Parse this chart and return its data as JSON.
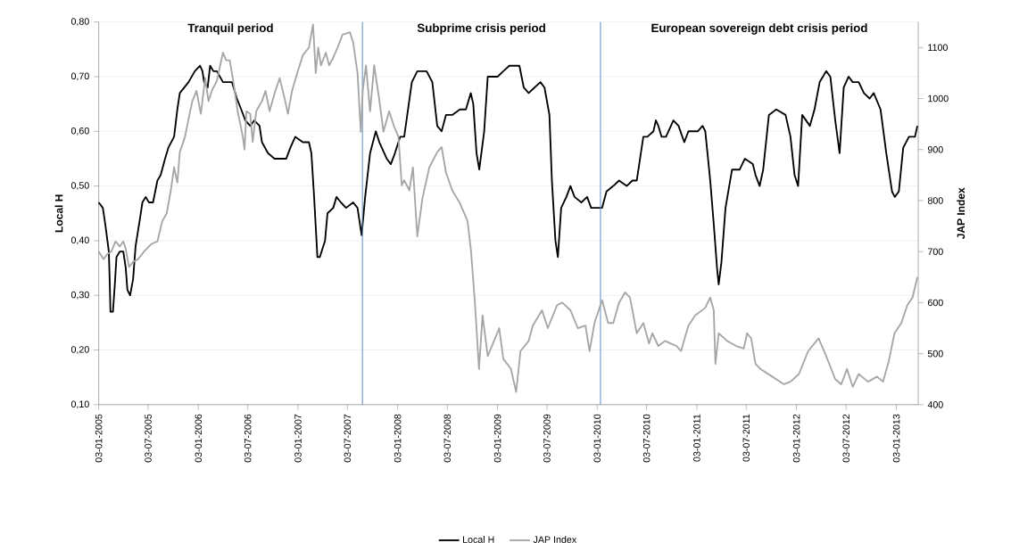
{
  "chart_data": {
    "type": "line",
    "annotations": [
      "Tranquil period",
      "Subprime crisis period",
      "European sovereign debt crisis period"
    ],
    "ylabel": "Local H",
    "y2label": "JAP Index",
    "xlim": [
      "2005-01-03",
      "2013-03-24"
    ],
    "xticks": [
      {
        "value": "2005-01-03",
        "label": "03-01-2005"
      },
      {
        "value": "2005-07-03",
        "label": "03-07-2005"
      },
      {
        "value": "2006-01-03",
        "label": "03-01-2006"
      },
      {
        "value": "2006-07-03",
        "label": "03-07-2006"
      },
      {
        "value": "2007-01-03",
        "label": "03-01-2007"
      },
      {
        "value": "2007-07-03",
        "label": "03-07-2007"
      },
      {
        "value": "2008-01-03",
        "label": "03-01-2008"
      },
      {
        "value": "2008-07-03",
        "label": "03-07-2008"
      },
      {
        "value": "2009-01-03",
        "label": "03-01-2009"
      },
      {
        "value": "2009-07-03",
        "label": "03-07-2009"
      },
      {
        "value": "2010-01-03",
        "label": "03-01-2010"
      },
      {
        "value": "2010-07-03",
        "label": "03-07-2010"
      },
      {
        "value": "2011-01-03",
        "label": "03-01-2011"
      },
      {
        "value": "2011-07-03",
        "label": "03-07-2011"
      },
      {
        "value": "2012-01-03",
        "label": "03-01-2012"
      },
      {
        "value": "2012-07-03",
        "label": "03-07-2012"
      },
      {
        "value": "2013-01-03",
        "label": "03-01-2013"
      }
    ],
    "ylim": [
      0.1,
      0.8
    ],
    "yticks": [
      {
        "value": 0.1,
        "label": "0,10"
      },
      {
        "value": 0.2,
        "label": "0,20"
      },
      {
        "value": 0.3,
        "label": "0,30"
      },
      {
        "value": 0.4,
        "label": "0,40"
      },
      {
        "value": 0.5,
        "label": "0,50"
      },
      {
        "value": 0.6,
        "label": "0,60"
      },
      {
        "value": 0.7,
        "label": "0,70"
      },
      {
        "value": 0.8,
        "label": "0,80"
      }
    ],
    "y2lim": [
      400,
      1150
    ],
    "y2ticks": [
      400,
      500,
      600,
      700,
      800,
      900,
      1000,
      1100
    ],
    "grid": "y",
    "legend": "bottom",
    "ref_lines": [
      {
        "axis": "x",
        "value": "2007-08-27",
        "color": "#4f81bd"
      },
      {
        "axis": "x",
        "value": "2010-01-15",
        "color": "#4f81bd"
      }
    ],
    "series": [
      {
        "name": "Local H",
        "color": "#000000",
        "x": [
          "2005-01-03",
          "2005-01-18",
          "2005-01-27",
          "2005-02-09",
          "2005-02-12",
          "2005-02-15",
          "2005-02-24",
          "2005-03-03",
          "2005-03-09",
          "2005-03-21",
          "2005-04-03",
          "2005-04-12",
          "2005-04-18",
          "2005-04-28",
          "2005-05-09",
          "2005-05-18",
          "2005-06-03",
          "2005-06-12",
          "2005-06-24",
          "2005-07-06",
          "2005-07-21",
          "2005-08-06",
          "2005-08-18",
          "2005-09-03",
          "2005-09-15",
          "2005-10-06",
          "2005-10-18",
          "2005-10-27",
          "2005-11-28",
          "2005-12-21",
          "2006-01-09",
          "2006-01-18",
          "2006-01-24",
          "2006-02-06",
          "2006-02-15",
          "2006-02-27",
          "2006-03-12",
          "2006-04-03",
          "2006-05-06",
          "2006-05-24",
          "2006-06-09",
          "2006-06-24",
          "2006-07-12",
          "2006-07-27",
          "2006-08-15",
          "2006-08-24",
          "2006-09-15",
          "2006-10-09",
          "2006-10-28",
          "2006-11-21",
          "2006-12-06",
          "2006-12-24",
          "2007-01-21",
          "2007-02-12",
          "2007-02-21",
          "2007-03-03",
          "2007-03-15",
          "2007-03-24",
          "2007-04-12",
          "2007-04-21",
          "2007-05-12",
          "2007-05-24",
          "2007-06-09",
          "2007-06-28",
          "2007-07-24",
          "2007-08-09",
          "2007-08-24",
          "2007-09-06",
          "2007-09-24",
          "2007-10-15",
          "2007-10-28",
          "2007-11-24",
          "2007-12-09",
          "2007-12-24",
          "2008-01-12",
          "2008-01-27",
          "2008-02-24",
          "2008-03-15",
          "2008-04-18",
          "2008-05-09",
          "2008-05-27",
          "2008-06-12",
          "2008-06-28",
          "2008-07-21",
          "2008-08-18",
          "2008-09-09",
          "2008-09-27",
          "2008-10-06",
          "2008-10-18",
          "2008-10-28",
          "2008-11-15",
          "2008-11-28",
          "2009-01-03",
          "2009-01-24",
          "2009-02-15",
          "2009-03-06",
          "2009-03-24",
          "2009-04-09",
          "2009-04-27",
          "2009-05-18",
          "2009-06-09",
          "2009-06-24",
          "2009-07-12",
          "2009-07-21",
          "2009-08-03",
          "2009-08-12",
          "2009-08-24",
          "2009-09-12",
          "2009-09-27",
          "2009-10-12",
          "2009-11-06",
          "2009-11-27",
          "2009-12-12",
          "2009-12-27",
          "2010-01-21",
          "2010-02-06",
          "2010-03-03",
          "2010-03-24",
          "2010-04-21",
          "2010-05-12",
          "2010-05-28",
          "2010-06-21",
          "2010-07-06",
          "2010-07-28",
          "2010-08-06",
          "2010-08-15",
          "2010-08-27",
          "2010-09-12",
          "2010-10-09",
          "2010-10-28",
          "2010-11-18",
          "2010-12-03",
          "2010-12-27",
          "2011-01-06",
          "2011-01-24",
          "2011-02-03",
          "2011-02-21",
          "2011-03-06",
          "2011-03-18",
          "2011-03-24",
          "2011-04-03",
          "2011-04-18",
          "2011-05-12",
          "2011-06-09",
          "2011-06-28",
          "2011-07-27",
          "2011-08-06",
          "2011-08-21",
          "2011-09-03",
          "2011-09-24",
          "2011-10-21",
          "2011-11-24",
          "2011-12-12",
          "2011-12-27",
          "2012-01-09",
          "2012-01-24",
          "2012-02-21",
          "2012-03-09",
          "2012-03-28",
          "2012-04-21",
          "2012-05-06",
          "2012-05-24",
          "2012-06-09",
          "2012-06-24",
          "2012-07-12",
          "2012-07-27",
          "2012-08-18",
          "2012-09-06",
          "2012-09-27",
          "2012-10-12",
          "2012-11-06",
          "2012-11-27",
          "2012-12-18",
          "2012-12-28",
          "2013-01-12",
          "2013-01-28",
          "2013-02-18",
          "2013-03-12",
          "2013-03-21"
        ],
        "values": [
          0.47,
          0.46,
          0.43,
          0.38,
          0.33,
          0.27,
          0.27,
          0.32,
          0.37,
          0.38,
          0.38,
          0.35,
          0.31,
          0.3,
          0.33,
          0.39,
          0.44,
          0.47,
          0.48,
          0.47,
          0.47,
          0.51,
          0.52,
          0.55,
          0.57,
          0.59,
          0.64,
          0.67,
          0.69,
          0.71,
          0.72,
          0.71,
          0.69,
          0.68,
          0.72,
          0.71,
          0.71,
          0.69,
          0.69,
          0.66,
          0.64,
          0.62,
          0.61,
          0.62,
          0.61,
          0.58,
          0.56,
          0.55,
          0.55,
          0.55,
          0.57,
          0.59,
          0.58,
          0.58,
          0.56,
          0.48,
          0.37,
          0.37,
          0.4,
          0.45,
          0.46,
          0.48,
          0.47,
          0.46,
          0.47,
          0.46,
          0.41,
          0.48,
          0.56,
          0.6,
          0.58,
          0.55,
          0.54,
          0.56,
          0.59,
          0.59,
          0.69,
          0.71,
          0.71,
          0.69,
          0.61,
          0.6,
          0.63,
          0.63,
          0.64,
          0.64,
          0.67,
          0.65,
          0.56,
          0.53,
          0.6,
          0.7,
          0.7,
          0.71,
          0.72,
          0.72,
          0.72,
          0.68,
          0.67,
          0.68,
          0.69,
          0.68,
          0.63,
          0.51,
          0.4,
          0.37,
          0.46,
          0.48,
          0.5,
          0.48,
          0.47,
          0.48,
          0.46,
          0.46,
          0.46,
          0.49,
          0.5,
          0.51,
          0.5,
          0.51,
          0.51,
          0.59,
          0.59,
          0.6,
          0.62,
          0.61,
          0.59,
          0.59,
          0.62,
          0.61,
          0.58,
          0.6,
          0.6,
          0.6,
          0.61,
          0.6,
          0.51,
          0.43,
          0.35,
          0.32,
          0.36,
          0.46,
          0.53,
          0.53,
          0.55,
          0.54,
          0.52,
          0.5,
          0.53,
          0.63,
          0.64,
          0.63,
          0.59,
          0.52,
          0.5,
          0.63,
          0.61,
          0.64,
          0.69,
          0.71,
          0.7,
          0.62,
          0.56,
          0.68,
          0.7,
          0.69,
          0.69,
          0.67,
          0.66,
          0.67,
          0.64,
          0.56,
          0.49,
          0.48,
          0.49,
          0.57,
          0.59,
          0.59,
          0.61
        ]
      },
      {
        "name": "JAP Index",
        "color": "#a6a6a6",
        "axis": "y2",
        "x": [
          "2005-01-03",
          "2005-01-21",
          "2005-02-03",
          "2005-02-18",
          "2005-03-06",
          "2005-03-21",
          "2005-04-03",
          "2005-04-12",
          "2005-04-24",
          "2005-05-09",
          "2005-05-27",
          "2005-06-18",
          "2005-07-15",
          "2005-08-06",
          "2005-08-24",
          "2005-09-09",
          "2005-09-24",
          "2005-10-06",
          "2005-10-18",
          "2005-10-27",
          "2005-11-15",
          "2005-11-28",
          "2005-12-12",
          "2005-12-27",
          "2006-01-12",
          "2006-01-28",
          "2006-02-09",
          "2006-02-21",
          "2006-03-12",
          "2006-04-03",
          "2006-04-15",
          "2006-04-28",
          "2006-05-12",
          "2006-05-27",
          "2006-06-15",
          "2006-06-21",
          "2006-06-28",
          "2006-07-12",
          "2006-07-21",
          "2006-08-03",
          "2006-08-24",
          "2006-09-06",
          "2006-09-21",
          "2006-10-09",
          "2006-10-28",
          "2006-11-15",
          "2006-11-27",
          "2006-12-12",
          "2007-01-03",
          "2007-01-21",
          "2007-02-12",
          "2007-02-27",
          "2007-03-09",
          "2007-03-18",
          "2007-03-28",
          "2007-04-15",
          "2007-04-27",
          "2007-05-12",
          "2007-05-28",
          "2007-06-15",
          "2007-07-12",
          "2007-07-24",
          "2007-08-09",
          "2007-08-21",
          "2007-08-28",
          "2007-09-09",
          "2007-09-24",
          "2007-10-09",
          "2007-10-27",
          "2007-11-12",
          "2007-12-03",
          "2007-12-21",
          "2008-01-06",
          "2008-01-18",
          "2008-01-27",
          "2008-02-15",
          "2008-02-28",
          "2008-03-15",
          "2008-04-03",
          "2008-04-28",
          "2008-05-27",
          "2008-06-12",
          "2008-06-28",
          "2008-07-21",
          "2008-08-18",
          "2008-09-15",
          "2008-09-28",
          "2008-10-12",
          "2008-10-27",
          "2008-11-09",
          "2008-11-28",
          "2008-12-21",
          "2009-01-09",
          "2009-01-24",
          "2009-02-21",
          "2009-03-12",
          "2009-03-28",
          "2009-04-27",
          "2009-05-12",
          "2009-06-15",
          "2009-07-06",
          "2009-08-09",
          "2009-08-28",
          "2009-09-27",
          "2009-10-24",
          "2009-11-21",
          "2009-12-06",
          "2009-12-24",
          "2010-01-21",
          "2010-02-12",
          "2010-03-03",
          "2010-03-24",
          "2010-04-15",
          "2010-05-03",
          "2010-05-28",
          "2010-06-21",
          "2010-07-12",
          "2010-07-24",
          "2010-08-15",
          "2010-09-09",
          "2010-09-28",
          "2010-10-21",
          "2010-11-06",
          "2010-12-03",
          "2010-12-28",
          "2011-02-03",
          "2011-02-21",
          "2011-03-06",
          "2011-03-12",
          "2011-03-24",
          "2011-04-24",
          "2011-05-27",
          "2011-06-24",
          "2011-07-06",
          "2011-07-21",
          "2011-08-06",
          "2011-08-24",
          "2011-10-06",
          "2011-11-18",
          "2011-12-12",
          "2012-01-12",
          "2012-02-15",
          "2012-03-24",
          "2012-04-21",
          "2012-05-24",
          "2012-06-15",
          "2012-07-06",
          "2012-07-27",
          "2012-08-18",
          "2012-09-21",
          "2012-10-24",
          "2012-11-15",
          "2012-12-06",
          "2012-12-27",
          "2013-01-21",
          "2013-02-12",
          "2013-03-03",
          "2013-03-21"
        ],
        "values": [
          700,
          685,
          695,
          700,
          720,
          710,
          720,
          705,
          670,
          680,
          685,
          700,
          715,
          720,
          760,
          775,
          820,
          865,
          835,
          895,
          925,
          960,
          995,
          1015,
          970,
          1040,
          995,
          1015,
          1035,
          1090,
          1075,
          1075,
          1030,
          975,
          925,
          900,
          975,
          970,
          915,
          975,
          995,
          1015,
          975,
          1010,
          1040,
          1000,
          970,
          1015,
          1055,
          1085,
          1100,
          1145,
          1050,
          1100,
          1065,
          1090,
          1065,
          1080,
          1100,
          1125,
          1130,
          1110,
          1050,
          935,
          1015,
          1065,
          975,
          1065,
          1000,
          935,
          975,
          945,
          925,
          830,
          840,
          820,
          865,
          730,
          805,
          865,
          895,
          905,
          855,
          820,
          795,
          760,
          700,
          600,
          470,
          575,
          495,
          525,
          550,
          490,
          470,
          425,
          505,
          525,
          555,
          585,
          550,
          595,
          600,
          585,
          550,
          555,
          505,
          560,
          605,
          560,
          560,
          600,
          620,
          610,
          540,
          560,
          520,
          540,
          515,
          525,
          520,
          515,
          505,
          555,
          575,
          590,
          610,
          585,
          480,
          540,
          525,
          515,
          510,
          540,
          530,
          480,
          470,
          455,
          440,
          445,
          460,
          505,
          530,
          495,
          450,
          440,
          470,
          435,
          460,
          445,
          455,
          445,
          485,
          540,
          560,
          595,
          610,
          650
        ]
      }
    ]
  }
}
